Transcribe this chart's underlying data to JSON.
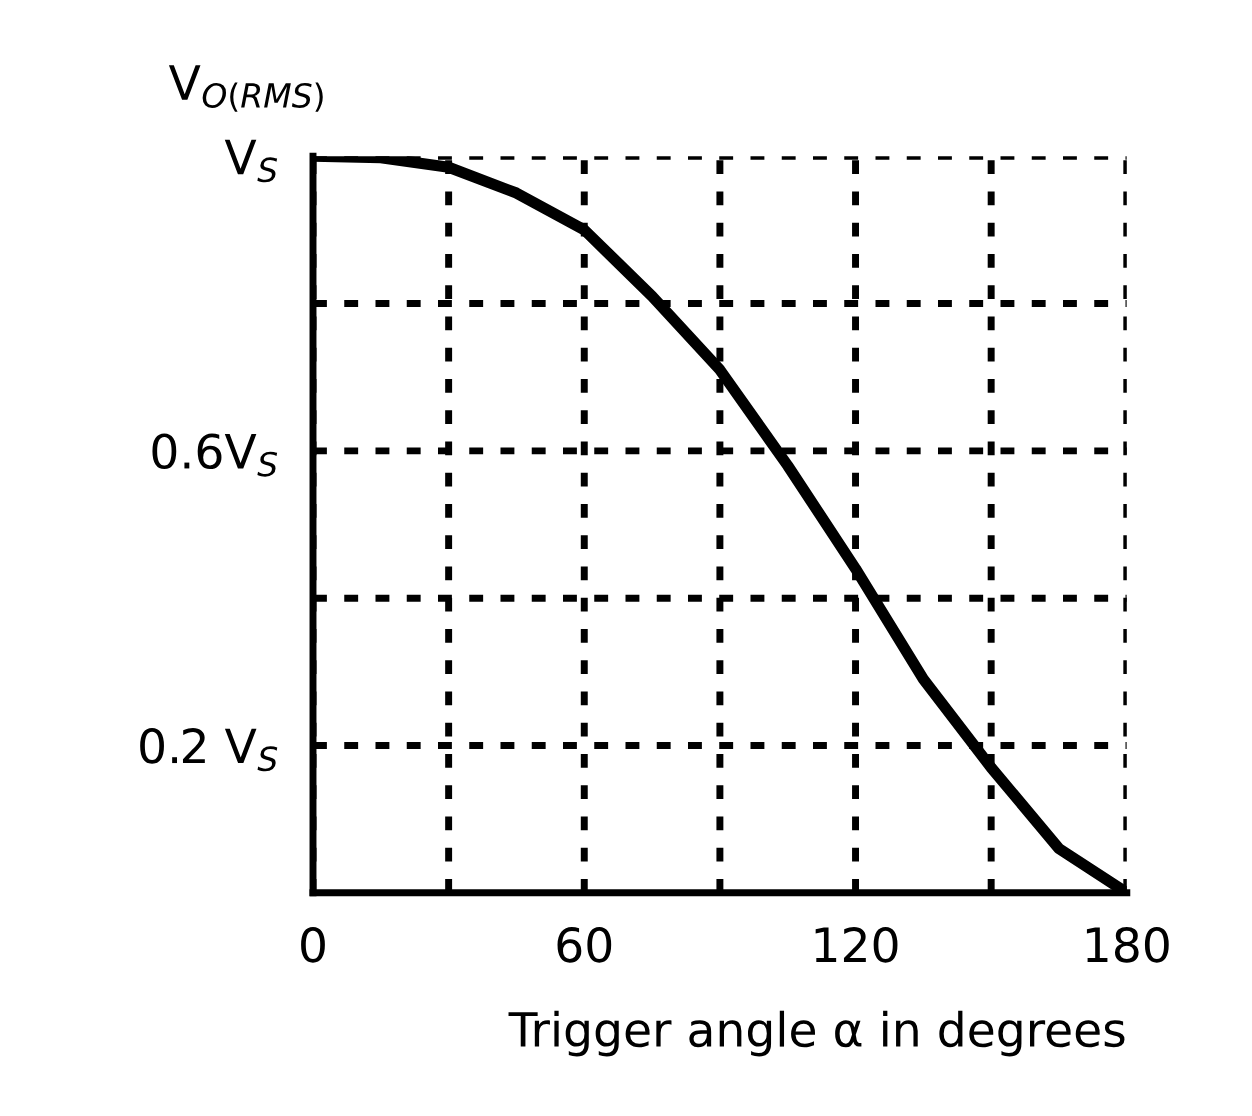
{
  "chart_data": {
    "type": "line",
    "xlabel": "Trigger angle α in degrees",
    "ylabel": "V$_{O(RMS)}$",
    "x": [
      0,
      15,
      30,
      45,
      60,
      75,
      90,
      105,
      120,
      135,
      150,
      165,
      180
    ],
    "series": [
      {
        "color": "#000000",
        "values": [
          1.0,
          0.998,
          0.985,
          0.95,
          0.9,
          0.81,
          0.71,
          0.58,
          0.44,
          0.29,
          0.17,
          0.06,
          0.0
        ]
      }
    ],
    "xlim": [
      0,
      180
    ],
    "ylim": [
      0,
      1
    ],
    "xticks": [
      0,
      {
        "value": 30,
        "label": null
      },
      60,
      {
        "value": 90,
        "label": null
      },
      120,
      {
        "value": 150,
        "label": null
      },
      180
    ],
    "yticks": [
      {
        "value": 0.2,
        "label": "0.2 V$_{S}$"
      },
      {
        "value": 0.4,
        "label": null
      },
      {
        "value": 0.6,
        "label": "0.6V$_{S}$"
      },
      {
        "value": 0.8,
        "label": null
      },
      {
        "value": 1,
        "label": "V$_{S}$"
      }
    ],
    "grid": true,
    "marker": "none",
    "line_style": "solid",
    "legend": false
  }
}
